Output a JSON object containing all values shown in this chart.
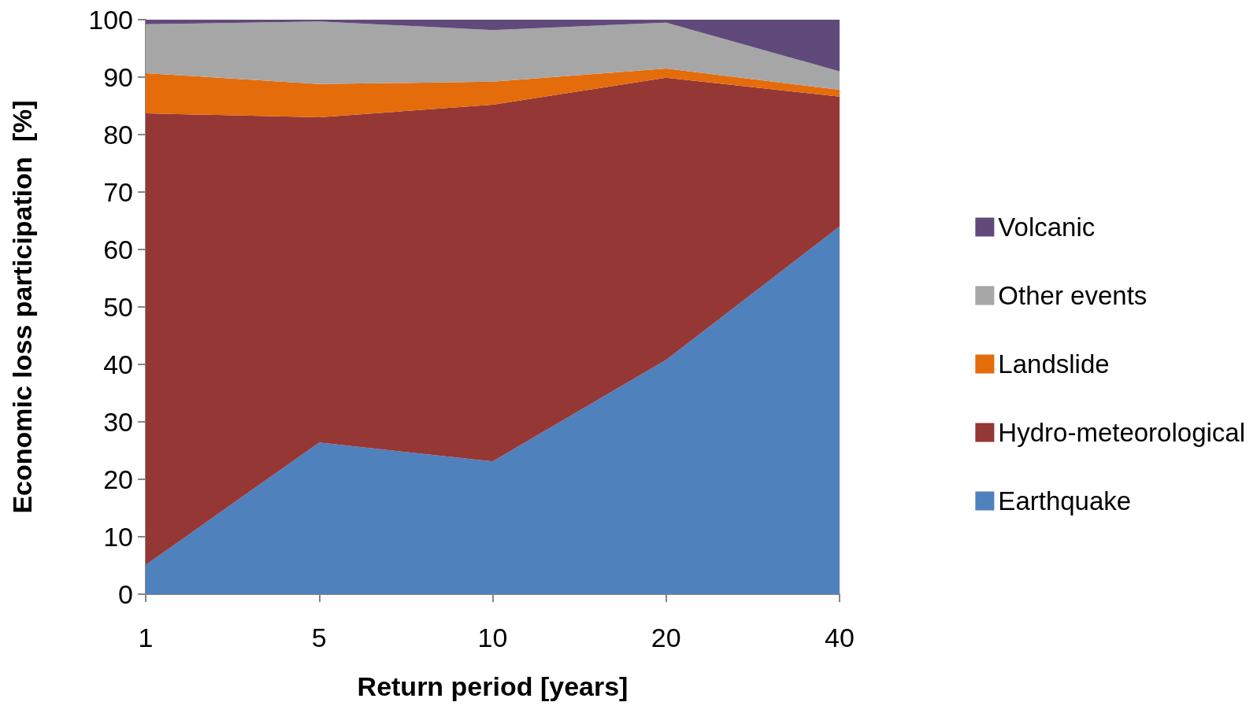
{
  "chart_data": {
    "type": "area",
    "stacked": true,
    "xlabel": "Return period [years]",
    "ylabel": "Economic loss participation  [%]",
    "categories": [
      "1",
      "5",
      "10",
      "20",
      "40"
    ],
    "series": [
      {
        "name": "Earthquake",
        "color": "#4f81bd",
        "values": [
          5.1,
          26.4,
          23.1,
          40.8,
          64.0
        ]
      },
      {
        "name": "Hydro-meteorological",
        "color": "#953735",
        "values": [
          78.6,
          56.6,
          62.1,
          49.1,
          22.6
        ]
      },
      {
        "name": "Landslide",
        "color": "#e46c0a",
        "values": [
          7.0,
          5.8,
          4.0,
          1.6,
          1.2
        ]
      },
      {
        "name": "Other events",
        "color": "#a6a6a6",
        "values": [
          8.5,
          10.9,
          9.0,
          8.0,
          3.2
        ]
      },
      {
        "name": "Volcanic",
        "color": "#604a7b",
        "values": [
          0.8,
          0.3,
          1.8,
          0.5,
          9.0
        ]
      }
    ],
    "ylim": [
      0,
      100
    ],
    "yticks": [
      0,
      10,
      20,
      30,
      40,
      50,
      60,
      70,
      80,
      90,
      100
    ],
    "grid": false,
    "legend": "right"
  }
}
